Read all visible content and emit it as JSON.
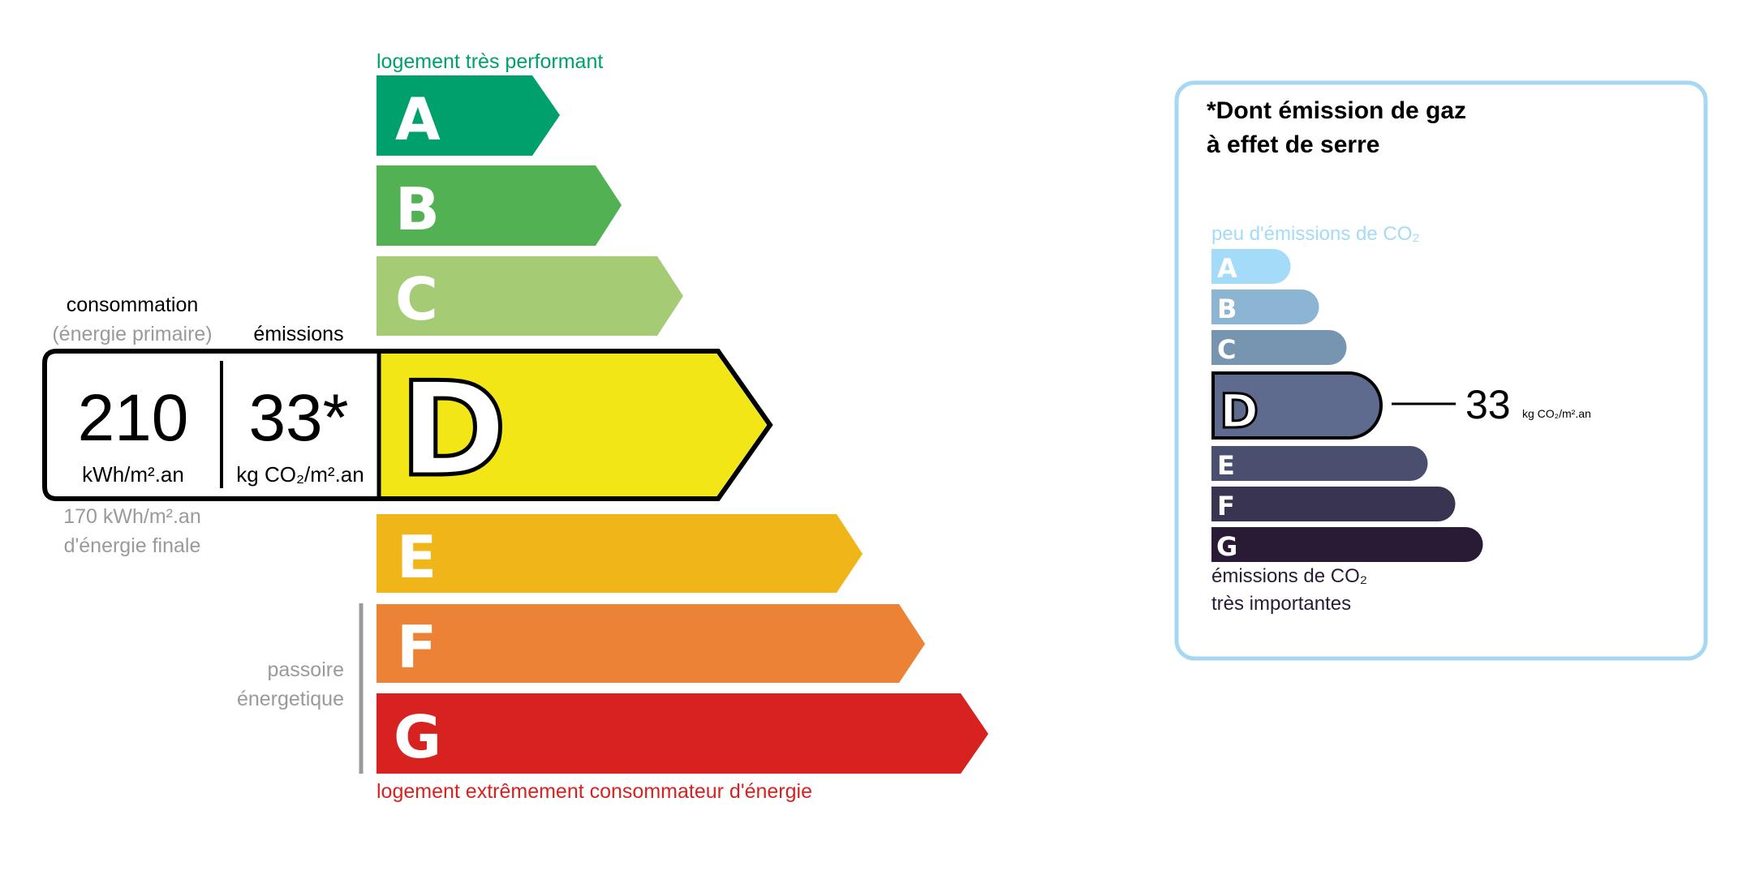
{
  "energy": {
    "top_label": "logement très performant",
    "bottom_label": "logement extrêmement consommateur d'énergie",
    "passoire_line1": "passoire",
    "passoire_line2": "énergetique",
    "classes": [
      {
        "letter": "A",
        "color": "#00a06d"
      },
      {
        "letter": "B",
        "color": "#52b153"
      },
      {
        "letter": "C",
        "color": "#a5cc74"
      },
      {
        "letter": "D",
        "color": "#f2e617"
      },
      {
        "letter": "E",
        "color": "#f0b519"
      },
      {
        "letter": "F",
        "color": "#eb8235"
      },
      {
        "letter": "G",
        "color": "#d7221f"
      }
    ],
    "current_class": "D",
    "consumption_label": "consommation",
    "consumption_sublabel": "(énergie primaire)",
    "emissions_label": "émissions",
    "consumption_value": "210",
    "consumption_unit": "kWh/m².an",
    "emissions_value": "33*",
    "emissions_unit": "kg CO₂/m².an",
    "final_energy_line1": "170 kWh/m².an",
    "final_energy_line2": "d'énergie finale",
    "top_label_color": "#00a06d",
    "bottom_label_color": "#d7221f"
  },
  "ges": {
    "title_line1": "*Dont émission de gaz",
    "title_line2": "à effet de serre",
    "top_label": "peu d'émissions de CO₂",
    "bottom_line1": "émissions de CO₂",
    "bottom_line2": "très importantes",
    "classes": [
      {
        "letter": "A",
        "color": "#a4dbf8"
      },
      {
        "letter": "B",
        "color": "#8cb4d3"
      },
      {
        "letter": "C",
        "color": "#7794b1"
      },
      {
        "letter": "D",
        "color": "#5e6b8f"
      },
      {
        "letter": "E",
        "color": "#4b4f6f"
      },
      {
        "letter": "F",
        "color": "#393551"
      },
      {
        "letter": "G",
        "color": "#291b35"
      }
    ],
    "current_class": "D",
    "value": "33",
    "unit": "kg CO₂/m².an",
    "border_color": "#a7d8f2"
  }
}
